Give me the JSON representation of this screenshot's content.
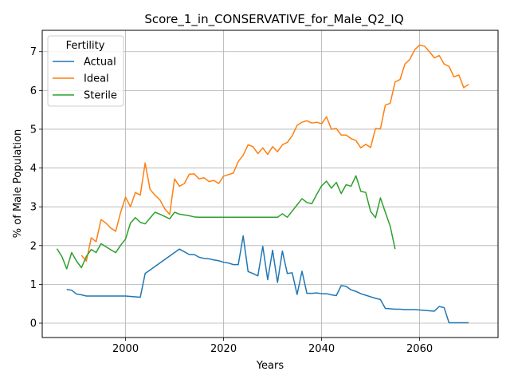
{
  "chart_data": {
    "type": "line",
    "title": "Score_1_in_CONSERVATIVE_for_Male_Q2_IQ",
    "xlabel": "Years",
    "ylabel": "% of Male Population",
    "xlim": [
      1983,
      2076
    ],
    "ylim": [
      -0.37,
      7.55
    ],
    "x_ticks": [
      2000,
      2020,
      2040,
      2060
    ],
    "y_ticks": [
      0,
      1,
      2,
      3,
      4,
      5,
      6,
      7
    ],
    "grid": true,
    "legend": {
      "title": "Fertility",
      "placement": "top-left"
    },
    "series": [
      {
        "name": "Actual",
        "color": "#1f77b4",
        "points": [
          [
            1988,
            0.87
          ],
          [
            1989,
            0.85
          ],
          [
            1990,
            0.75
          ],
          [
            1991,
            0.73
          ],
          [
            1992,
            0.7
          ],
          [
            1993,
            0.7
          ],
          [
            1994,
            0.7
          ],
          [
            1995,
            0.7
          ],
          [
            1996,
            0.7
          ],
          [
            1997,
            0.7
          ],
          [
            1998,
            0.7
          ],
          [
            1999,
            0.7
          ],
          [
            2000,
            0.7
          ],
          [
            2001,
            0.69
          ],
          [
            2002,
            0.68
          ],
          [
            2003,
            0.67
          ],
          [
            2004,
            1.28
          ],
          [
            2005,
            1.37
          ],
          [
            2006,
            1.46
          ],
          [
            2007,
            1.55
          ],
          [
            2008,
            1.64
          ],
          [
            2009,
            1.73
          ],
          [
            2010,
            1.82
          ],
          [
            2011,
            1.91
          ],
          [
            2012,
            1.84
          ],
          [
            2013,
            1.77
          ],
          [
            2014,
            1.77
          ],
          [
            2015,
            1.7
          ],
          [
            2016,
            1.67
          ],
          [
            2017,
            1.66
          ],
          [
            2018,
            1.63
          ],
          [
            2019,
            1.61
          ],
          [
            2020,
            1.57
          ],
          [
            2021,
            1.55
          ],
          [
            2022,
            1.51
          ],
          [
            2023,
            1.51
          ],
          [
            2024,
            2.25
          ],
          [
            2025,
            1.33
          ],
          [
            2026,
            1.28
          ],
          [
            2027,
            1.22
          ],
          [
            2028,
            1.98
          ],
          [
            2029,
            1.12
          ],
          [
            2030,
            1.88
          ],
          [
            2031,
            1.05
          ],
          [
            2032,
            1.86
          ],
          [
            2033,
            1.28
          ],
          [
            2034,
            1.3
          ],
          [
            2035,
            0.74
          ],
          [
            2036,
            1.34
          ],
          [
            2037,
            0.77
          ],
          [
            2038,
            0.77
          ],
          [
            2039,
            0.78
          ],
          [
            2040,
            0.76
          ],
          [
            2041,
            0.76
          ],
          [
            2042,
            0.73
          ],
          [
            2043,
            0.71
          ],
          [
            2044,
            0.97
          ],
          [
            2045,
            0.95
          ],
          [
            2046,
            0.86
          ],
          [
            2047,
            0.82
          ],
          [
            2048,
            0.76
          ],
          [
            2049,
            0.72
          ],
          [
            2050,
            0.68
          ],
          [
            2051,
            0.64
          ],
          [
            2052,
            0.61
          ],
          [
            2053,
            0.38
          ],
          [
            2054,
            0.37
          ],
          [
            2055,
            0.36
          ],
          [
            2056,
            0.36
          ],
          [
            2057,
            0.35
          ],
          [
            2058,
            0.35
          ],
          [
            2059,
            0.35
          ],
          [
            2060,
            0.34
          ],
          [
            2061,
            0.33
          ],
          [
            2062,
            0.32
          ],
          [
            2063,
            0.31
          ],
          [
            2064,
            0.43
          ],
          [
            2065,
            0.4
          ],
          [
            2066,
            0.01
          ],
          [
            2067,
            0.01
          ],
          [
            2068,
            0.01
          ],
          [
            2069,
            0.01
          ],
          [
            2070,
            0.01
          ]
        ]
      },
      {
        "name": "Ideal",
        "color": "#ff7f0e",
        "points": [
          [
            1991,
            1.75
          ],
          [
            1992,
            1.6
          ],
          [
            1993,
            2.2
          ],
          [
            1994,
            2.1
          ],
          [
            1995,
            2.67
          ],
          [
            1996,
            2.58
          ],
          [
            1997,
            2.45
          ],
          [
            1998,
            2.37
          ],
          [
            1999,
            2.86
          ],
          [
            2000,
            3.25
          ],
          [
            2001,
            3.0
          ],
          [
            2002,
            3.37
          ],
          [
            2003,
            3.3
          ],
          [
            2004,
            4.13
          ],
          [
            2005,
            3.45
          ],
          [
            2006,
            3.3
          ],
          [
            2007,
            3.18
          ],
          [
            2008,
            2.95
          ],
          [
            2009,
            2.8
          ],
          [
            2010,
            3.72
          ],
          [
            2011,
            3.53
          ],
          [
            2012,
            3.6
          ],
          [
            2013,
            3.84
          ],
          [
            2014,
            3.85
          ],
          [
            2015,
            3.72
          ],
          [
            2016,
            3.75
          ],
          [
            2017,
            3.65
          ],
          [
            2018,
            3.68
          ],
          [
            2019,
            3.6
          ],
          [
            2020,
            3.79
          ],
          [
            2021,
            3.83
          ],
          [
            2022,
            3.87
          ],
          [
            2023,
            4.17
          ],
          [
            2024,
            4.33
          ],
          [
            2025,
            4.6
          ],
          [
            2026,
            4.55
          ],
          [
            2027,
            4.37
          ],
          [
            2028,
            4.52
          ],
          [
            2029,
            4.35
          ],
          [
            2030,
            4.55
          ],
          [
            2031,
            4.42
          ],
          [
            2032,
            4.6
          ],
          [
            2033,
            4.66
          ],
          [
            2034,
            4.83
          ],
          [
            2035,
            5.1
          ],
          [
            2036,
            5.18
          ],
          [
            2037,
            5.22
          ],
          [
            2038,
            5.16
          ],
          [
            2039,
            5.18
          ],
          [
            2040,
            5.14
          ],
          [
            2041,
            5.32
          ],
          [
            2042,
            5.0
          ],
          [
            2043,
            5.02
          ],
          [
            2044,
            4.85
          ],
          [
            2045,
            4.85
          ],
          [
            2046,
            4.76
          ],
          [
            2047,
            4.71
          ],
          [
            2048,
            4.52
          ],
          [
            2049,
            4.61
          ],
          [
            2050,
            4.53
          ],
          [
            2051,
            5.02
          ],
          [
            2052,
            5.01
          ],
          [
            2053,
            5.62
          ],
          [
            2054,
            5.67
          ],
          [
            2055,
            6.22
          ],
          [
            2056,
            6.28
          ],
          [
            2057,
            6.68
          ],
          [
            2058,
            6.8
          ],
          [
            2059,
            7.05
          ],
          [
            2060,
            7.17
          ],
          [
            2061,
            7.14
          ],
          [
            2062,
            7.0
          ],
          [
            2063,
            6.84
          ],
          [
            2064,
            6.9
          ],
          [
            2065,
            6.68
          ],
          [
            2066,
            6.62
          ],
          [
            2067,
            6.35
          ],
          [
            2068,
            6.4
          ],
          [
            2069,
            6.07
          ],
          [
            2070,
            6.16
          ]
        ]
      },
      {
        "name": "Sterile",
        "color": "#2ca02c",
        "points": [
          [
            1986,
            1.92
          ],
          [
            1987,
            1.72
          ],
          [
            1988,
            1.4
          ],
          [
            1989,
            1.82
          ],
          [
            1990,
            1.6
          ],
          [
            1991,
            1.43
          ],
          [
            1992,
            1.72
          ],
          [
            1993,
            1.9
          ],
          [
            1994,
            1.82
          ],
          [
            1995,
            2.05
          ],
          [
            1996,
            1.97
          ],
          [
            1997,
            1.89
          ],
          [
            1998,
            1.82
          ],
          [
            1999,
            2.01
          ],
          [
            2000,
            2.17
          ],
          [
            2001,
            2.58
          ],
          [
            2002,
            2.72
          ],
          [
            2003,
            2.6
          ],
          [
            2004,
            2.56
          ],
          [
            2005,
            2.71
          ],
          [
            2006,
            2.86
          ],
          [
            2007,
            2.81
          ],
          [
            2008,
            2.75
          ],
          [
            2009,
            2.69
          ],
          [
            2010,
            2.86
          ],
          [
            2011,
            2.81
          ],
          [
            2012,
            2.79
          ],
          [
            2013,
            2.77
          ],
          [
            2014,
            2.74
          ],
          [
            2015,
            2.73
          ],
          [
            2016,
            2.73
          ],
          [
            2017,
            2.73
          ],
          [
            2018,
            2.73
          ],
          [
            2019,
            2.73
          ],
          [
            2020,
            2.73
          ],
          [
            2021,
            2.73
          ],
          [
            2022,
            2.73
          ],
          [
            2023,
            2.73
          ],
          [
            2024,
            2.73
          ],
          [
            2025,
            2.73
          ],
          [
            2026,
            2.73
          ],
          [
            2027,
            2.73
          ],
          [
            2028,
            2.73
          ],
          [
            2029,
            2.73
          ],
          [
            2030,
            2.73
          ],
          [
            2031,
            2.73
          ],
          [
            2032,
            2.82
          ],
          [
            2033,
            2.73
          ],
          [
            2034,
            2.89
          ],
          [
            2035,
            3.05
          ],
          [
            2036,
            3.21
          ],
          [
            2037,
            3.11
          ],
          [
            2038,
            3.08
          ],
          [
            2039,
            3.32
          ],
          [
            2040,
            3.54
          ],
          [
            2041,
            3.66
          ],
          [
            2042,
            3.48
          ],
          [
            2043,
            3.63
          ],
          [
            2044,
            3.34
          ],
          [
            2045,
            3.57
          ],
          [
            2046,
            3.53
          ],
          [
            2047,
            3.8
          ],
          [
            2048,
            3.4
          ],
          [
            2049,
            3.37
          ],
          [
            2050,
            2.88
          ],
          [
            2051,
            2.72
          ],
          [
            2052,
            3.23
          ],
          [
            2053,
            2.86
          ],
          [
            2054,
            2.5
          ],
          [
            2055,
            1.91
          ]
        ]
      }
    ]
  }
}
